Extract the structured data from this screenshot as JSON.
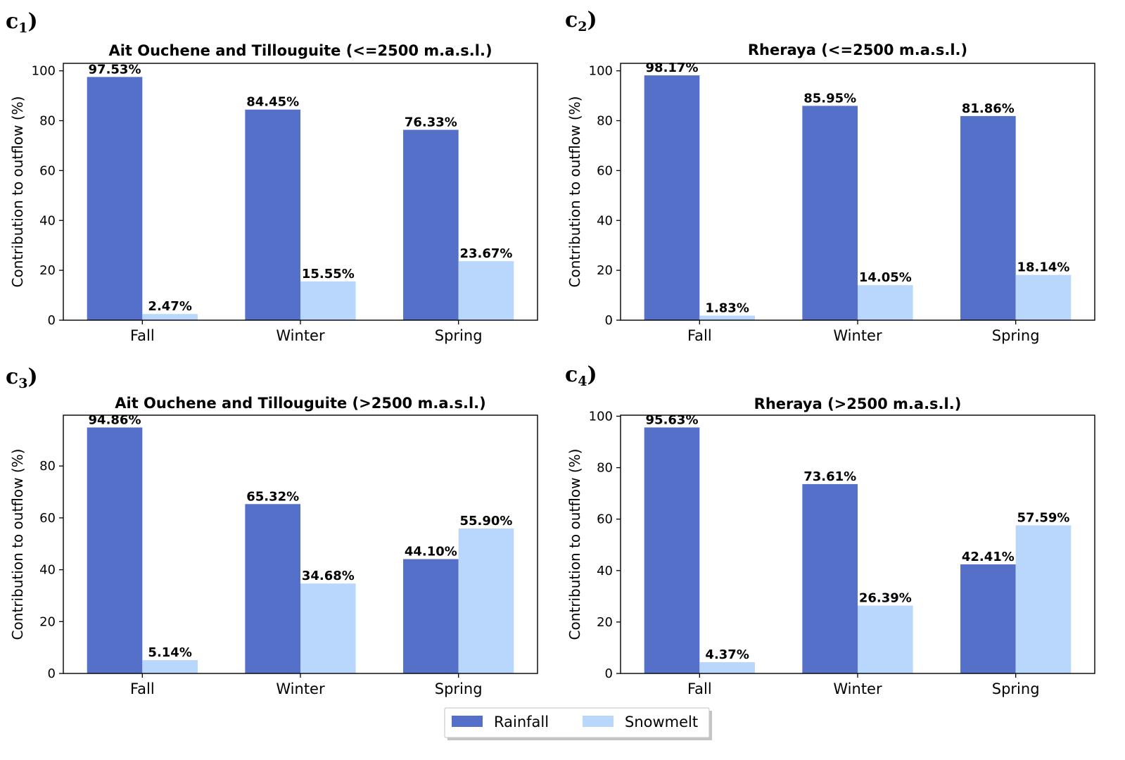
{
  "colors": {
    "rainfall": "#5570C8",
    "snowmelt": "#B9D7FC",
    "axis": "#000000"
  },
  "legend": {
    "rainfall_label": "Rainfall",
    "snowmelt_label": "Snowmelt",
    "placement": "lower center"
  },
  "chart_data": [
    {
      "panel_main": "c",
      "panel_sub": "1",
      "panel_close": ")",
      "type": "bar",
      "title": "Ait Ouchene and Tillouguite (<=2500 m.a.s.l.)",
      "ylabel": "Contribution to outflow (%)",
      "ylim": [
        0,
        103
      ],
      "yticks": [
        0,
        20,
        40,
        60,
        80,
        100
      ],
      "categories": [
        "Fall",
        "Winter",
        "Spring"
      ],
      "series": [
        {
          "name": "Rainfall",
          "values": [
            97.53,
            84.45,
            76.33
          ],
          "labels": [
            "97.53%",
            "84.45%",
            "76.33%"
          ]
        },
        {
          "name": "Snowmelt",
          "values": [
            2.47,
            15.55,
            23.67
          ],
          "labels": [
            "2.47%",
            "15.55%",
            "23.67%"
          ]
        }
      ]
    },
    {
      "panel_main": "c",
      "panel_sub": "2",
      "panel_close": ")",
      "type": "bar",
      "title": "Rheraya (<=2500 m.a.s.l.)",
      "ylabel": "Contribution to outflow (%)",
      "ylim": [
        0,
        103
      ],
      "yticks": [
        0,
        20,
        40,
        60,
        80,
        100
      ],
      "categories": [
        "Fall",
        "Winter",
        "Spring"
      ],
      "series": [
        {
          "name": "Rainfall",
          "values": [
            98.17,
            85.95,
            81.86
          ],
          "labels": [
            "98.17%",
            "85.95%",
            "81.86%"
          ]
        },
        {
          "name": "Snowmelt",
          "values": [
            1.83,
            14.05,
            18.14
          ],
          "labels": [
            "1.83%",
            "14.05%",
            "18.14%"
          ]
        }
      ]
    },
    {
      "panel_main": "c",
      "panel_sub": "3",
      "panel_close": ")",
      "type": "bar",
      "title": "Ait Ouchene and Tillouguite (>2500 m.a.s.l.)",
      "ylabel": "Contribution to outflow (%)",
      "ylim": [
        0,
        99.6
      ],
      "yticks": [
        0,
        20,
        40,
        60,
        80
      ],
      "categories": [
        "Fall",
        "Winter",
        "Spring"
      ],
      "series": [
        {
          "name": "Rainfall",
          "values": [
            94.86,
            65.32,
            44.1
          ],
          "labels": [
            "94.86%",
            "65.32%",
            "44.10%"
          ]
        },
        {
          "name": "Snowmelt",
          "values": [
            5.14,
            34.68,
            55.9
          ],
          "labels": [
            "5.14%",
            "34.68%",
            "55.90%"
          ]
        }
      ]
    },
    {
      "panel_main": "c",
      "panel_sub": "4",
      "panel_close": ")",
      "type": "bar",
      "title": "Rheraya (>2500 m.a.s.l.)",
      "ylabel": "Contribution to outflow (%)",
      "ylim": [
        0,
        100.4
      ],
      "yticks": [
        0,
        20,
        40,
        60,
        80,
        100
      ],
      "categories": [
        "Fall",
        "Winter",
        "Spring"
      ],
      "series": [
        {
          "name": "Rainfall",
          "values": [
            95.63,
            73.61,
            42.41
          ],
          "labels": [
            "95.63%",
            "73.61%",
            "42.41%"
          ]
        },
        {
          "name": "Snowmelt",
          "values": [
            4.37,
            26.39,
            57.59
          ],
          "labels": [
            "4.37%",
            "26.39%",
            "57.59%"
          ]
        }
      ]
    }
  ]
}
